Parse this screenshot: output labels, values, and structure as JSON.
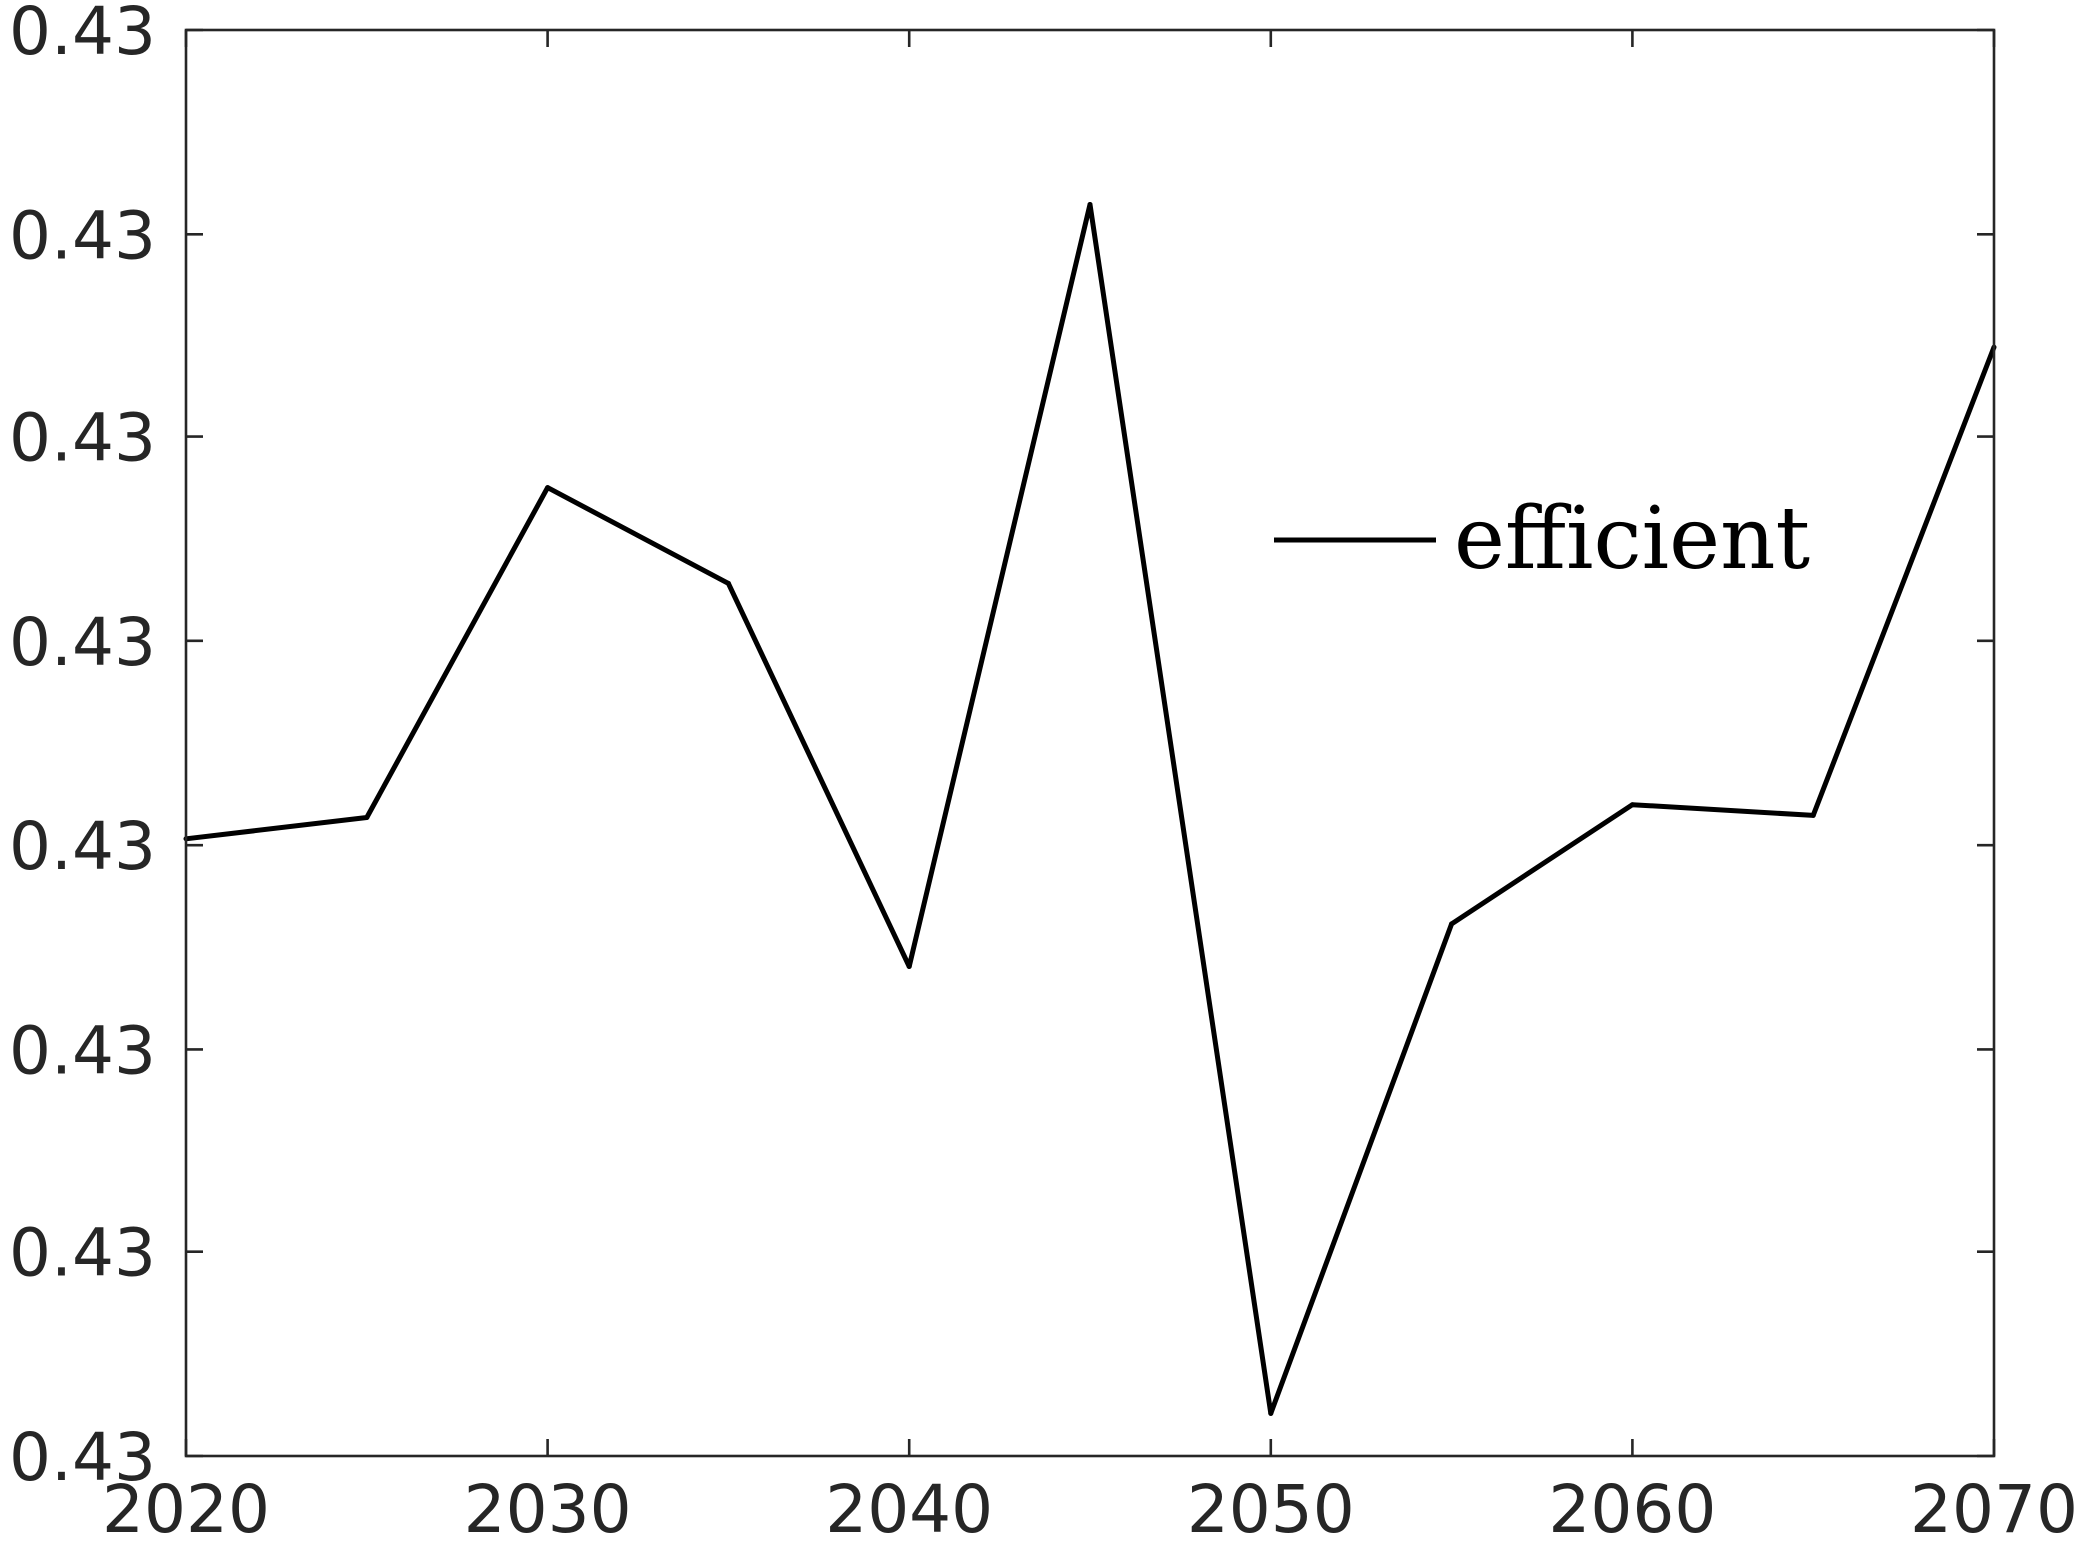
{
  "chart_data": {
    "type": "line",
    "title": "",
    "xlabel": "",
    "ylabel": "",
    "x": [
      2020,
      2025,
      2030,
      2035,
      2040,
      2045,
      2050,
      2055,
      2060,
      2065,
      2070
    ],
    "series": [
      {
        "name": "efficient",
        "color": "#000000",
        "values": [
          0.4296,
          0.4297,
          0.43125,
          0.4308,
          0.429,
          0.43258,
          0.4269,
          0.4292,
          0.42976,
          0.42971,
          0.43191
        ]
      }
    ],
    "xlim": [
      2020,
      2070
    ],
    "ylim": [
      0.4267,
      0.4334
    ],
    "x_ticks": [
      2020,
      2030,
      2040,
      2050,
      2060,
      2070
    ],
    "y_ticks": [
      0.4267,
      0.42766,
      0.42861,
      0.42957,
      0.43053,
      0.43149,
      0.43244,
      0.4334
    ],
    "x_tick_labels": [
      "2020",
      "2030",
      "2040",
      "2050",
      "2060",
      "2070"
    ],
    "y_tick_labels": [
      "0.43",
      "0.43",
      "0.43",
      "0.43",
      "0.43",
      "0.43",
      "0.43",
      "0.43"
    ],
    "legend": {
      "placement": "inside-right",
      "entries": [
        "efficient"
      ]
    },
    "grid": false
  }
}
